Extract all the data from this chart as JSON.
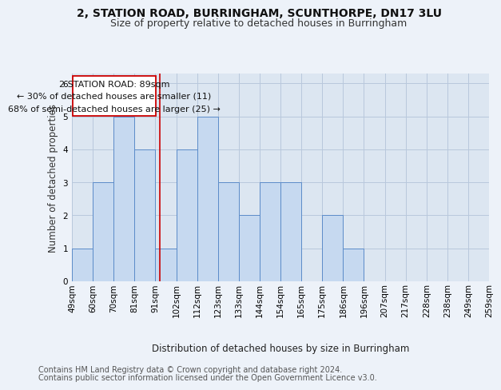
{
  "title1": "2, STATION ROAD, BURRINGHAM, SCUNTHORPE, DN17 3LU",
  "title2": "Size of property relative to detached houses in Burringham",
  "xlabel": "Distribution of detached houses by size in Burringham",
  "ylabel": "Number of detached properties",
  "footnote1": "Contains HM Land Registry data © Crown copyright and database right 2024.",
  "footnote2": "Contains public sector information licensed under the Open Government Licence v3.0.",
  "annotation_line1": "2 STATION ROAD: 89sqm",
  "annotation_line2": "← 30% of detached houses are smaller (11)",
  "annotation_line3": "68% of semi-detached houses are larger (25) →",
  "bar_values": [
    1,
    3,
    5,
    4,
    1,
    4,
    5,
    3,
    2,
    3,
    3,
    0,
    2,
    1,
    0,
    0,
    0,
    0,
    0,
    0
  ],
  "bin_labels": [
    "49sqm",
    "60sqm",
    "70sqm",
    "81sqm",
    "91sqm",
    "102sqm",
    "112sqm",
    "123sqm",
    "133sqm",
    "144sqm",
    "154sqm",
    "165sqm",
    "175sqm",
    "186sqm",
    "196sqm",
    "207sqm",
    "217sqm",
    "228sqm",
    "238sqm",
    "249sqm",
    "259sqm"
  ],
  "bar_color": "#c6d9f0",
  "bar_edge_color": "#5b8bc9",
  "bar_width": 1.0,
  "red_line_x": 3.72,
  "ylim": [
    0,
    6.3
  ],
  "yticks": [
    0,
    1,
    2,
    3,
    4,
    5,
    6
  ],
  "grid_color": "#b8c8dc",
  "background_color": "#edf2f9",
  "plot_bg_color": "#dce6f1",
  "annotation_box_color": "#ffffff",
  "annotation_box_edge": "#cc0000",
  "red_line_color": "#cc0000",
  "title_fontsize": 10,
  "subtitle_fontsize": 9,
  "axis_label_fontsize": 8.5,
  "tick_fontsize": 7.5,
  "annotation_fontsize": 8,
  "footnote_fontsize": 7
}
